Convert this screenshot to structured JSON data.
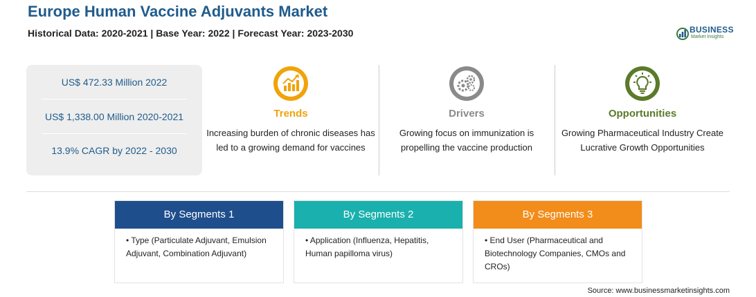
{
  "header": {
    "title": "Europe Human Vaccine Adjuvants Market",
    "subtitle": "Historical Data: 2020-2021 | Base Year: 2022 | Forecast Year: 2023-2030"
  },
  "logo": {
    "name": "BUSINESS",
    "tagline": "Market Insights"
  },
  "stats": [
    "US$ 472.33 Million 2022",
    "US$ 1,338.00 Million 2020-2021",
    "13.9% CAGR by 2022 - 2030"
  ],
  "columns": [
    {
      "icon": "trend-chart-icon",
      "title": "Trends",
      "color": "#f0a30a",
      "text": "Increasing burden of chronic diseases has led to a growing demand for vaccines"
    },
    {
      "icon": "gears-icon",
      "title": "Drivers",
      "color": "#8a8a8a",
      "text": "Growing focus on immunization is propelling the vaccine production"
    },
    {
      "icon": "lightbulb-icon",
      "title": "Opportunities",
      "color": "#5b7a2a",
      "text": "Growing Pharmaceutical Industry Create Lucrative Growth Opportunities"
    }
  ],
  "segments": [
    {
      "title": "By Segments 1",
      "color": "#1f4e8c",
      "item": "Type (Particulate Adjuvant, Emulsion Adjuvant, Combination Adjuvant)"
    },
    {
      "title": "By Segments 2",
      "color": "#1ab0ad",
      "item": "Application (Influenza, Hepatitis, Human papilloma virus)"
    },
    {
      "title": "By Segments 3",
      "color": "#f28c1a",
      "item": "End User (Pharmaceutical and Biotechnology Companies, CMOs and CROs)"
    }
  ],
  "source": "Source: www.businessmarketinsights.com"
}
